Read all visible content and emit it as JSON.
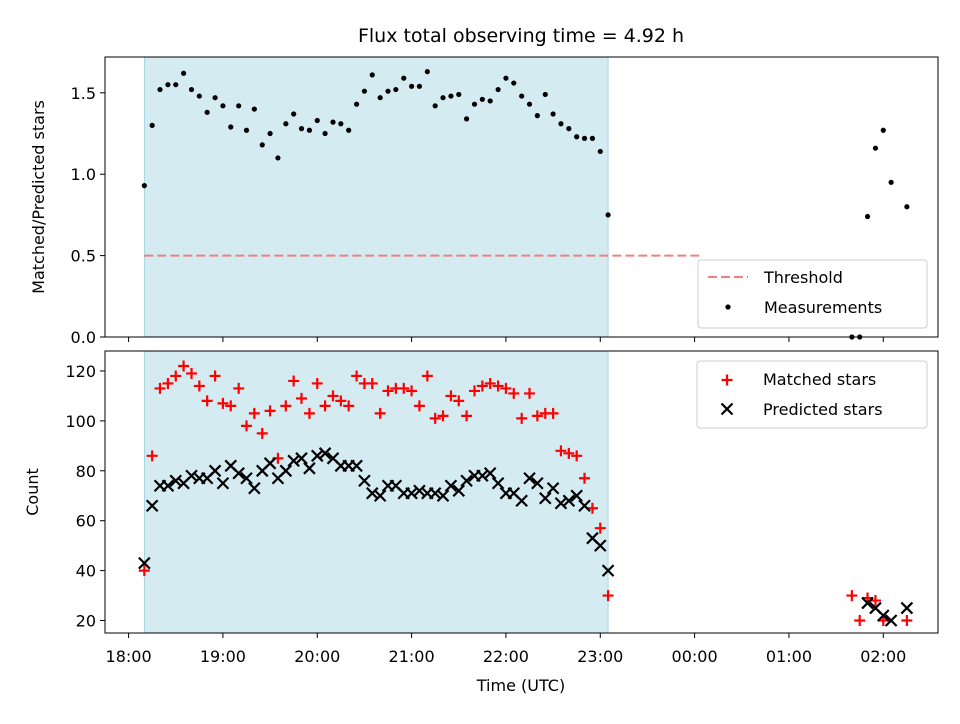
{
  "chart_data": [
    {
      "type": "scatter",
      "panel": "top",
      "title": "Flux total observing time = 4.92 h",
      "ylabel": "Matched/Predicted stars",
      "xlabel": "",
      "x_unit": "hours since 18:00 UTC (continues past midnight)",
      "ylim": [
        0,
        1.72
      ],
      "yticks": [
        0.0,
        0.5,
        1.0,
        1.5
      ],
      "ytick_labels": [
        "0.0",
        "0.5",
        "1.0",
        "1.5"
      ],
      "observing_span": [
        0.167,
        5.083
      ],
      "threshold": {
        "name": "Threshold",
        "value": 0.5,
        "x_range": [
          0.167,
          6.083
        ],
        "color": "#f08080"
      },
      "legend": {
        "position": "lower right",
        "entries": [
          "Threshold",
          "Measurements"
        ]
      },
      "series": [
        {
          "name": "Measurements",
          "color": "#000000",
          "points": [
            [
              0.167,
              0.93
            ],
            [
              0.25,
              1.3
            ],
            [
              0.333,
              1.52
            ],
            [
              0.417,
              1.55
            ],
            [
              0.5,
              1.55
            ],
            [
              0.583,
              1.62
            ],
            [
              0.667,
              1.52
            ],
            [
              0.75,
              1.48
            ],
            [
              0.833,
              1.38
            ],
            [
              0.917,
              1.47
            ],
            [
              1.0,
              1.42
            ],
            [
              1.083,
              1.29
            ],
            [
              1.167,
              1.42
            ],
            [
              1.25,
              1.27
            ],
            [
              1.333,
              1.4
            ],
            [
              1.417,
              1.18
            ],
            [
              1.5,
              1.25
            ],
            [
              1.583,
              1.1
            ],
            [
              1.667,
              1.31
            ],
            [
              1.75,
              1.37
            ],
            [
              1.833,
              1.28
            ],
            [
              1.917,
              1.27
            ],
            [
              2.0,
              1.33
            ],
            [
              2.083,
              1.25
            ],
            [
              2.167,
              1.32
            ],
            [
              2.25,
              1.31
            ],
            [
              2.333,
              1.27
            ],
            [
              2.417,
              1.43
            ],
            [
              2.5,
              1.51
            ],
            [
              2.583,
              1.61
            ],
            [
              2.667,
              1.47
            ],
            [
              2.75,
              1.51
            ],
            [
              2.833,
              1.52
            ],
            [
              2.917,
              1.59
            ],
            [
              3.0,
              1.54
            ],
            [
              3.083,
              1.54
            ],
            [
              3.167,
              1.63
            ],
            [
              3.25,
              1.42
            ],
            [
              3.333,
              1.47
            ],
            [
              3.417,
              1.48
            ],
            [
              3.5,
              1.49
            ],
            [
              3.583,
              1.34
            ],
            [
              3.667,
              1.43
            ],
            [
              3.75,
              1.46
            ],
            [
              3.833,
              1.45
            ],
            [
              3.917,
              1.52
            ],
            [
              4.0,
              1.59
            ],
            [
              4.083,
              1.56
            ],
            [
              4.167,
              1.48
            ],
            [
              4.25,
              1.43
            ],
            [
              4.333,
              1.36
            ],
            [
              4.417,
              1.49
            ],
            [
              4.5,
              1.37
            ],
            [
              4.583,
              1.31
            ],
            [
              4.667,
              1.28
            ],
            [
              4.75,
              1.23
            ],
            [
              4.833,
              1.22
            ],
            [
              4.917,
              1.22
            ],
            [
              5.0,
              1.14
            ],
            [
              5.083,
              0.75
            ],
            [
              7.667,
              0.0
            ],
            [
              7.75,
              0.0
            ],
            [
              7.833,
              0.74
            ],
            [
              7.917,
              1.16
            ],
            [
              8.0,
              1.27
            ],
            [
              8.083,
              0.95
            ],
            [
              8.25,
              0.8
            ]
          ]
        }
      ]
    },
    {
      "type": "scatter",
      "panel": "bottom",
      "title": "",
      "ylabel": "Count",
      "xlabel": "Time (UTC)",
      "x_unit": "hours since 18:00 UTC (continues past midnight)",
      "xlim": [
        -0.25,
        8.58
      ],
      "ylim": [
        15,
        128
      ],
      "yticks": [
        20,
        40,
        60,
        80,
        100,
        120
      ],
      "ytick_labels": [
        "20",
        "40",
        "60",
        "80",
        "100",
        "120"
      ],
      "xticks": [
        0,
        1,
        2,
        3,
        4,
        5,
        6,
        7,
        8
      ],
      "xtick_labels": [
        "18:00",
        "19:00",
        "20:00",
        "21:00",
        "22:00",
        "23:00",
        "00:00",
        "01:00",
        "02:00"
      ],
      "observing_span": [
        0.167,
        5.083
      ],
      "legend": {
        "position": "upper right",
        "entries": [
          "Matched stars",
          "Predicted stars"
        ]
      },
      "series": [
        {
          "name": "Matched stars",
          "marker": "+",
          "color": "#ff0000",
          "points": [
            [
              0.167,
              40
            ],
            [
              0.25,
              86
            ],
            [
              0.333,
              113
            ],
            [
              0.417,
              115
            ],
            [
              0.5,
              118
            ],
            [
              0.583,
              122
            ],
            [
              0.667,
              119
            ],
            [
              0.75,
              114
            ],
            [
              0.833,
              108
            ],
            [
              0.917,
              118
            ],
            [
              1.0,
              107
            ],
            [
              1.083,
              106
            ],
            [
              1.167,
              113
            ],
            [
              1.25,
              98
            ],
            [
              1.333,
              103
            ],
            [
              1.417,
              95
            ],
            [
              1.5,
              104
            ],
            [
              1.583,
              85
            ],
            [
              1.667,
              106
            ],
            [
              1.75,
              116
            ],
            [
              1.833,
              109
            ],
            [
              1.917,
              103
            ],
            [
              2.0,
              115
            ],
            [
              2.083,
              106
            ],
            [
              2.167,
              110
            ],
            [
              2.25,
              108
            ],
            [
              2.333,
              106
            ],
            [
              2.417,
              118
            ],
            [
              2.5,
              115
            ],
            [
              2.583,
              115
            ],
            [
              2.667,
              103
            ],
            [
              2.75,
              112
            ],
            [
              2.833,
              113
            ],
            [
              2.917,
              113
            ],
            [
              3.0,
              112
            ],
            [
              3.083,
              106
            ],
            [
              3.167,
              118
            ],
            [
              3.25,
              101
            ],
            [
              3.333,
              102
            ],
            [
              3.417,
              110
            ],
            [
              3.5,
              108
            ],
            [
              3.583,
              102
            ],
            [
              3.667,
              112
            ],
            [
              3.75,
              114
            ],
            [
              3.833,
              115
            ],
            [
              3.917,
              114
            ],
            [
              4.0,
              113
            ],
            [
              4.083,
              111
            ],
            [
              4.167,
              101
            ],
            [
              4.25,
              111
            ],
            [
              4.333,
              102
            ],
            [
              4.417,
              103
            ],
            [
              4.5,
              103
            ],
            [
              4.583,
              88
            ],
            [
              4.667,
              87
            ],
            [
              4.75,
              86
            ],
            [
              4.833,
              77
            ],
            [
              4.917,
              65
            ],
            [
              5.0,
              57
            ],
            [
              5.083,
              30
            ],
            [
              7.667,
              30
            ],
            [
              7.75,
              20
            ],
            [
              7.833,
              29
            ],
            [
              7.917,
              28
            ],
            [
              8.0,
              20
            ],
            [
              8.25,
              20
            ]
          ]
        },
        {
          "name": "Predicted stars",
          "marker": "x",
          "color": "#000000",
          "points": [
            [
              0.167,
              43
            ],
            [
              0.25,
              66
            ],
            [
              0.333,
              74
            ],
            [
              0.417,
              74
            ],
            [
              0.5,
              76
            ],
            [
              0.583,
              75
            ],
            [
              0.667,
              78
            ],
            [
              0.75,
              77
            ],
            [
              0.833,
              77
            ],
            [
              0.917,
              80
            ],
            [
              1.0,
              75
            ],
            [
              1.083,
              82
            ],
            [
              1.167,
              79
            ],
            [
              1.25,
              77
            ],
            [
              1.333,
              73
            ],
            [
              1.417,
              80
            ],
            [
              1.5,
              83
            ],
            [
              1.583,
              77
            ],
            [
              1.667,
              80
            ],
            [
              1.75,
              84
            ],
            [
              1.833,
              85
            ],
            [
              1.917,
              81
            ],
            [
              2.0,
              86
            ],
            [
              2.083,
              87
            ],
            [
              2.167,
              85
            ],
            [
              2.25,
              82
            ],
            [
              2.333,
              82
            ],
            [
              2.417,
              82
            ],
            [
              2.5,
              76
            ],
            [
              2.583,
              71
            ],
            [
              2.667,
              70
            ],
            [
              2.75,
              74
            ],
            [
              2.833,
              74
            ],
            [
              2.917,
              71
            ],
            [
              3.0,
              71
            ],
            [
              3.083,
              72
            ],
            [
              3.167,
              71
            ],
            [
              3.25,
              71
            ],
            [
              3.333,
              70
            ],
            [
              3.417,
              74
            ],
            [
              3.5,
              72
            ],
            [
              3.583,
              76
            ],
            [
              3.667,
              78
            ],
            [
              3.75,
              78
            ],
            [
              3.833,
              79
            ],
            [
              3.917,
              75
            ],
            [
              4.0,
              71
            ],
            [
              4.083,
              71
            ],
            [
              4.167,
              68
            ],
            [
              4.25,
              77
            ],
            [
              4.333,
              75
            ],
            [
              4.417,
              69
            ],
            [
              4.5,
              73
            ],
            [
              4.583,
              67
            ],
            [
              4.667,
              68
            ],
            [
              4.75,
              70
            ],
            [
              4.833,
              66
            ],
            [
              4.917,
              53
            ],
            [
              5.0,
              50
            ],
            [
              5.083,
              40
            ],
            [
              7.833,
              27
            ],
            [
              7.917,
              25
            ],
            [
              8.0,
              22
            ],
            [
              8.083,
              20
            ],
            [
              8.25,
              25
            ]
          ]
        }
      ]
    }
  ]
}
